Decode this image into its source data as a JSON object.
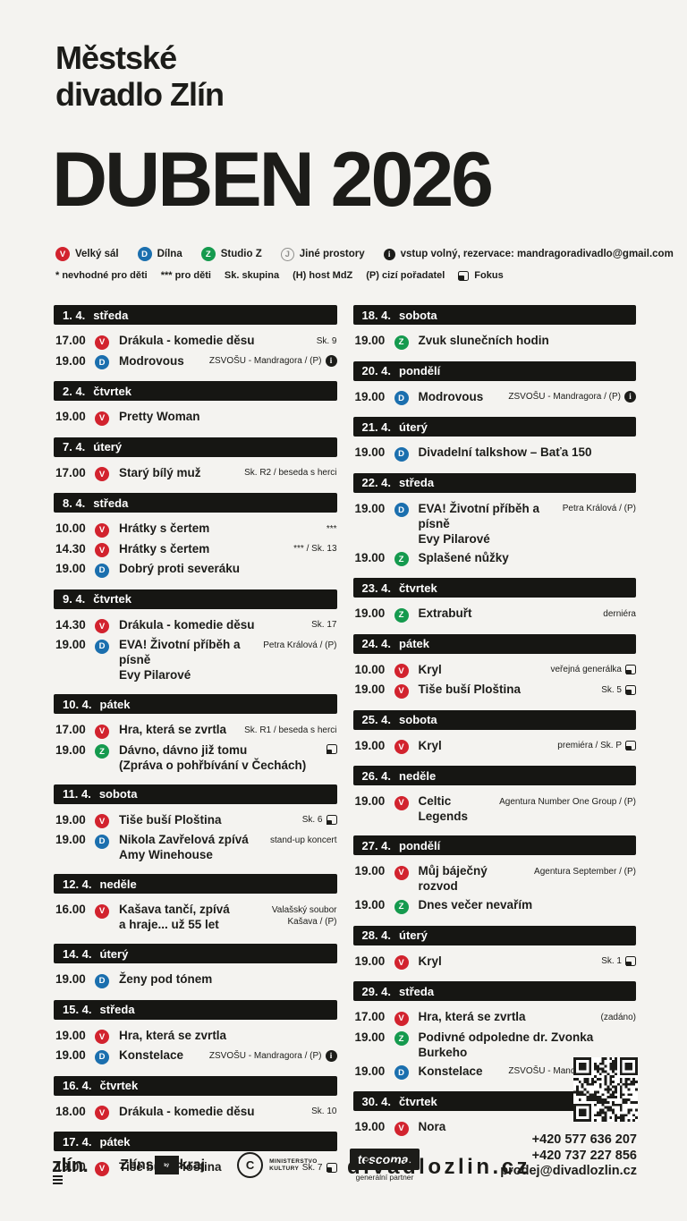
{
  "poster": {
    "org_line1": "Městské",
    "org_line2": "divadlo Zlín",
    "month_title": "DUBEN 2026"
  },
  "colors": {
    "background": "#f4f3f0",
    "black": "#1c1c19",
    "red": "#d2232e",
    "blue": "#1b6fae",
    "green": "#159a4e",
    "gray": "#8f8f8c"
  },
  "legend": {
    "venues": [
      {
        "code": "V",
        "label": "Velký sál",
        "color": "red"
      },
      {
        "code": "D",
        "label": "Dílna",
        "color": "blue"
      },
      {
        "code": "Z",
        "label": "Studio Z",
        "color": "green"
      },
      {
        "code": "J",
        "label": "Jiné prostory",
        "color": "gray"
      }
    ],
    "info_note": "vstup volný, rezervace: mandragoradivadlo@gmail.com",
    "notes": [
      "* nevhodné pro děti",
      "*** pro děti",
      "Sk. skupina",
      "(H) host MdZ",
      "(P) cizí pořadatel"
    ],
    "fokus_label": "Fokus"
  },
  "columns": {
    "left": [
      {
        "date": "1. 4.",
        "day": "středa",
        "events": [
          {
            "time": "17.00",
            "venue": "V",
            "title": [
              "Drákula - komedie děsu"
            ],
            "note": [
              "Sk. 9"
            ]
          },
          {
            "time": "19.00",
            "venue": "D",
            "title": [
              "Modrovous"
            ],
            "note": [
              "ZSVOŠU - Mandragora / (P)"
            ],
            "info": true
          }
        ]
      },
      {
        "date": "2. 4.",
        "day": "čtvrtek",
        "events": [
          {
            "time": "19.00",
            "venue": "V",
            "title": [
              "Pretty Woman"
            ],
            "note": []
          }
        ]
      },
      {
        "date": "7. 4.",
        "day": "úterý",
        "events": [
          {
            "time": "17.00",
            "venue": "V",
            "title": [
              "Starý bílý muž"
            ],
            "note": [
              "Sk. R2 / beseda s herci"
            ]
          }
        ]
      },
      {
        "date": "8. 4.",
        "day": "středa",
        "events": [
          {
            "time": "10.00",
            "venue": "V",
            "title": [
              "Hrátky s čertem"
            ],
            "note": [
              "***"
            ]
          },
          {
            "time": "14.30",
            "venue": "V",
            "title": [
              "Hrátky s čertem"
            ],
            "note": [
              "*** / Sk. 13"
            ]
          },
          {
            "time": "19.00",
            "venue": "D",
            "title": [
              "Dobrý proti severáku"
            ],
            "note": []
          }
        ]
      },
      {
        "date": "9. 4.",
        "day": "čtvrtek",
        "events": [
          {
            "time": "14.30",
            "venue": "V",
            "title": [
              "Drákula - komedie děsu"
            ],
            "note": [
              "Sk. 17"
            ]
          },
          {
            "time": "19.00",
            "venue": "D",
            "title": [
              "EVA! Životní příběh a písně",
              "Evy Pilarové"
            ],
            "note": [
              "Petra Králová / (P)"
            ]
          }
        ]
      },
      {
        "date": "10. 4.",
        "day": "pátek",
        "events": [
          {
            "time": "17.00",
            "venue": "V",
            "title": [
              "Hra, která se zvrtla"
            ],
            "note": [
              "Sk. R1 / beseda s herci"
            ]
          },
          {
            "time": "19.00",
            "venue": "Z",
            "title": [
              "Dávno, dávno již tomu",
              "(Zpráva o pohřbívání v Čechách)"
            ],
            "note": [
              ""
            ],
            "fokus": true
          }
        ]
      },
      {
        "date": "11. 4.",
        "day": "sobota",
        "events": [
          {
            "time": "19.00",
            "venue": "V",
            "title": [
              "Tiše buší Ploština"
            ],
            "note": [
              "Sk. 6"
            ],
            "fokus": true
          },
          {
            "time": "19.00",
            "venue": "D",
            "title": [
              "Nikola Zavřelová zpívá",
              "Amy Winehouse"
            ],
            "note": [
              "stand-up koncert"
            ]
          }
        ]
      },
      {
        "date": "12. 4.",
        "day": "neděle",
        "events": [
          {
            "time": "16.00",
            "venue": "V",
            "title": [
              "Kašava tančí, zpívá",
              "a hraje... už 55 let"
            ],
            "note": [
              "Valašský soubor",
              "Kašava / (P)"
            ]
          }
        ]
      },
      {
        "date": "14. 4.",
        "day": "úterý",
        "events": [
          {
            "time": "19.00",
            "venue": "D",
            "title": [
              "Ženy pod tónem"
            ],
            "note": []
          }
        ]
      },
      {
        "date": "15. 4.",
        "day": "středa",
        "events": [
          {
            "time": "19.00",
            "venue": "V",
            "title": [
              "Hra, která se zvrtla"
            ],
            "note": []
          },
          {
            "time": "19.00",
            "venue": "D",
            "title": [
              "Konstelace"
            ],
            "note": [
              "ZSVOŠU - Mandragora / (P)"
            ],
            "info": true
          }
        ]
      },
      {
        "date": "16. 4.",
        "day": "čtvrtek",
        "events": [
          {
            "time": "18.00",
            "venue": "V",
            "title": [
              "Drákula - komedie děsu"
            ],
            "note": [
              "Sk. 10"
            ]
          }
        ]
      },
      {
        "date": "17. 4.",
        "day": "pátek",
        "events": [
          {
            "time": "19.00",
            "venue": "V",
            "title": [
              "Tiše buší Ploština"
            ],
            "note": [
              "Sk. 7"
            ],
            "fokus": true
          }
        ]
      }
    ],
    "right": [
      {
        "date": "18. 4.",
        "day": "sobota",
        "events": [
          {
            "time": "19.00",
            "venue": "Z",
            "title": [
              "Zvuk slunečních hodin"
            ],
            "note": []
          }
        ]
      },
      {
        "date": "20. 4.",
        "day": "pondělí",
        "events": [
          {
            "time": "19.00",
            "venue": "D",
            "title": [
              "Modrovous"
            ],
            "note": [
              "ZSVOŠU - Mandragora / (P)"
            ],
            "info": true
          }
        ]
      },
      {
        "date": "21. 4.",
        "day": "úterý",
        "events": [
          {
            "time": "19.00",
            "venue": "D",
            "title": [
              "Divadelní talkshow – Baťa 150"
            ],
            "note": []
          }
        ]
      },
      {
        "date": "22. 4.",
        "day": "středa",
        "events": [
          {
            "time": "19.00",
            "venue": "D",
            "title": [
              "EVA! Životní příběh a písně",
              "Evy Pilarové"
            ],
            "note": [
              "Petra Králová / (P)"
            ]
          },
          {
            "time": "19.00",
            "venue": "Z",
            "title": [
              "Splašené nůžky"
            ],
            "note": []
          }
        ]
      },
      {
        "date": "23. 4.",
        "day": "čtvrtek",
        "events": [
          {
            "time": "19.00",
            "venue": "Z",
            "title": [
              "Extrabuřt"
            ],
            "note": [
              "derniéra"
            ]
          }
        ]
      },
      {
        "date": "24. 4.",
        "day": "pátek",
        "events": [
          {
            "time": "10.00",
            "venue": "V",
            "title": [
              "Kryl"
            ],
            "note": [
              "veřejná generálka"
            ],
            "fokus": true
          },
          {
            "time": "19.00",
            "venue": "V",
            "title": [
              "Tiše buší Ploština"
            ],
            "note": [
              "Sk. 5"
            ],
            "fokus": true
          }
        ]
      },
      {
        "date": "25. 4.",
        "day": "sobota",
        "events": [
          {
            "time": "19.00",
            "venue": "V",
            "title": [
              "Kryl"
            ],
            "note": [
              "premiéra / Sk. P"
            ],
            "fokus": true
          }
        ]
      },
      {
        "date": "26. 4.",
        "day": "neděle",
        "events": [
          {
            "time": "19.00",
            "venue": "V",
            "title": [
              "Celtic Legends"
            ],
            "note": [
              "Agentura Number One Group / (P)"
            ]
          }
        ]
      },
      {
        "date": "27. 4.",
        "day": "pondělí",
        "events": [
          {
            "time": "19.00",
            "venue": "V",
            "title": [
              "Můj báječný rozvod"
            ],
            "note": [
              "Agentura September / (P)"
            ]
          },
          {
            "time": "19.00",
            "venue": "Z",
            "title": [
              "Dnes večer nevařím"
            ],
            "note": []
          }
        ]
      },
      {
        "date": "28. 4.",
        "day": "úterý",
        "events": [
          {
            "time": "19.00",
            "venue": "V",
            "title": [
              "Kryl"
            ],
            "note": [
              "Sk. 1"
            ],
            "fokus": true
          }
        ]
      },
      {
        "date": "29. 4.",
        "day": "středa",
        "events": [
          {
            "time": "17.00",
            "venue": "V",
            "title": [
              "Hra, která se zvrtla"
            ],
            "note": [
              "(zadáno)"
            ]
          },
          {
            "time": "19.00",
            "venue": "Z",
            "title": [
              "Podivné odpoledne dr. Zvonka Burkeho"
            ],
            "note": []
          },
          {
            "time": "19.00",
            "venue": "D",
            "title": [
              "Konstelace"
            ],
            "note": [
              "ZSVOŠU - Mandragora / (P)"
            ],
            "info": true
          }
        ]
      },
      {
        "date": "30. 4.",
        "day": "čtvrtek",
        "events": [
          {
            "time": "19.00",
            "venue": "V",
            "title": [
              "Nora"
            ],
            "note": []
          }
        ]
      }
    ]
  },
  "footer": {
    "logos": {
      "zlin": "zlín.",
      "kraj_pre": "Zlíns",
      "kraj_box": "ký",
      "kraj_post": "kraj",
      "mk_mark": "C",
      "mk_line1": "MINISTERSTVO",
      "mk_line2": "KULTURY",
      "tescoma": "tescoma.",
      "tescoma_sub": "generální partner"
    },
    "website": "divadlozlin.cz",
    "phone1": "+420 577 636 207",
    "phone2": "+420 737 227 856",
    "email": "prodej@divadlozlin.cz"
  }
}
